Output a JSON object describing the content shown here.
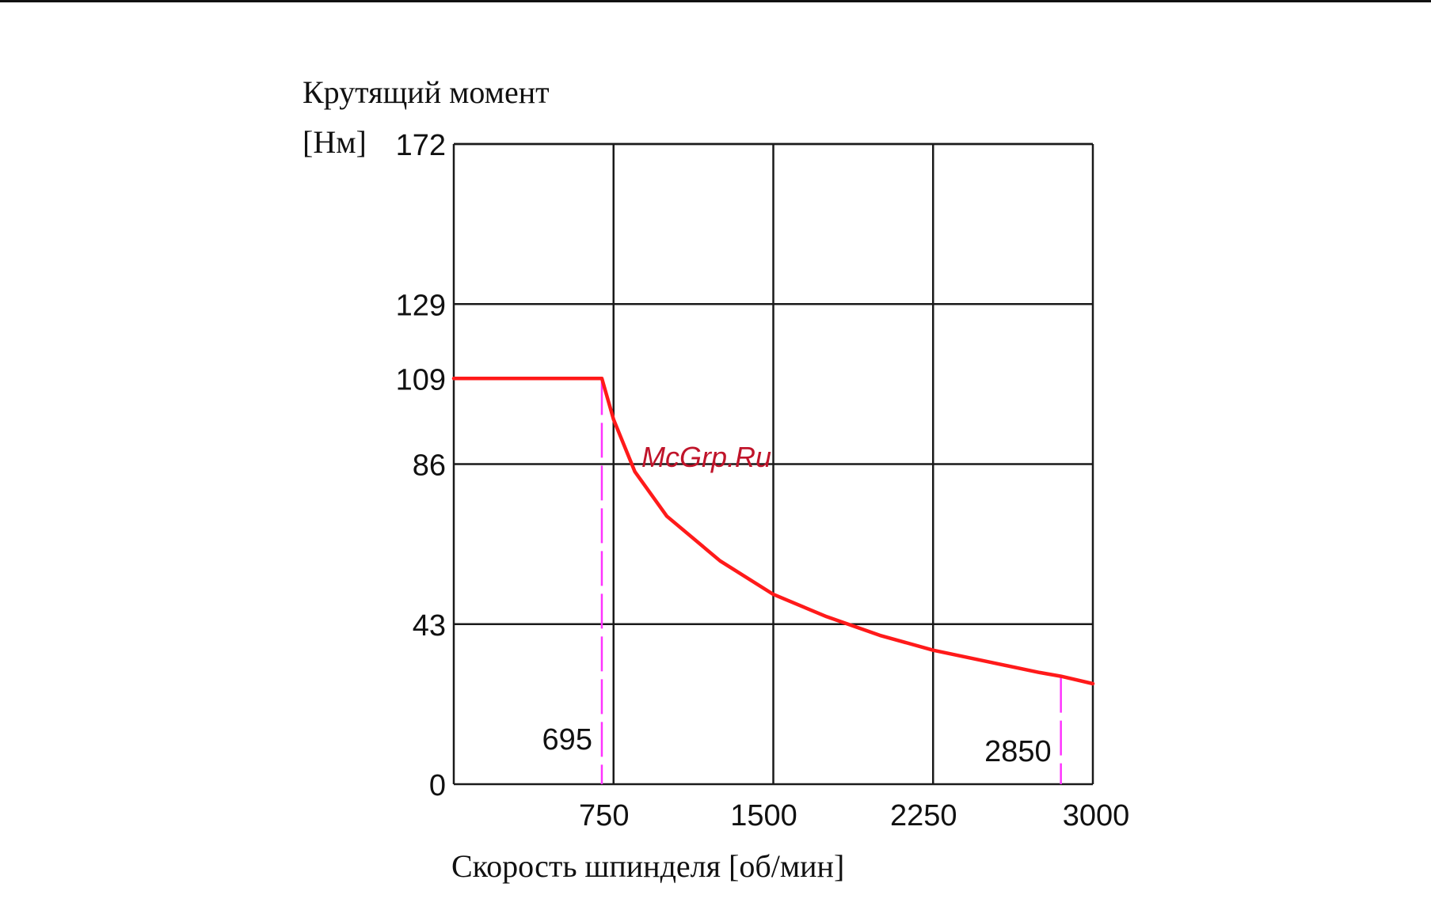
{
  "chart_data": {
    "type": "line",
    "title": "",
    "ylabel_line1": "Крутящий момент",
    "ylabel_line2": "[Нм]",
    "xlabel": "Скорость шпинделя [об/мин]",
    "xlim": [
      0,
      3000
    ],
    "ylim": [
      0,
      172
    ],
    "x_ticks": [
      750,
      1500,
      2250,
      3000
    ],
    "x_tick_labels": [
      "750",
      "1500",
      "2250",
      "3000"
    ],
    "y_ticks": [
      0,
      43,
      86,
      129,
      172
    ],
    "y_tick_labels": [
      "0",
      "43",
      "86",
      "129",
      "172"
    ],
    "grid": true,
    "series": [
      {
        "color": "#ff1a1a",
        "x": [
          0,
          695,
          750,
          850,
          1000,
          1250,
          1500,
          1750,
          2000,
          2250,
          2500,
          2750,
          2850,
          3000
        ],
        "y": [
          109,
          109,
          98,
          84,
          72,
          60,
          51,
          45,
          40,
          36,
          33,
          30,
          29,
          27
        ]
      }
    ],
    "markers": [
      {
        "x": 695,
        "label": "695",
        "y_top": 109,
        "color": "#ff33ff"
      },
      {
        "x": 2850,
        "label": "2850",
        "y_top": 29,
        "color": "#ff33ff"
      }
    ],
    "extra_y_tick": {
      "value": 109,
      "label": "109"
    }
  },
  "watermark": "McGrp.Ru"
}
